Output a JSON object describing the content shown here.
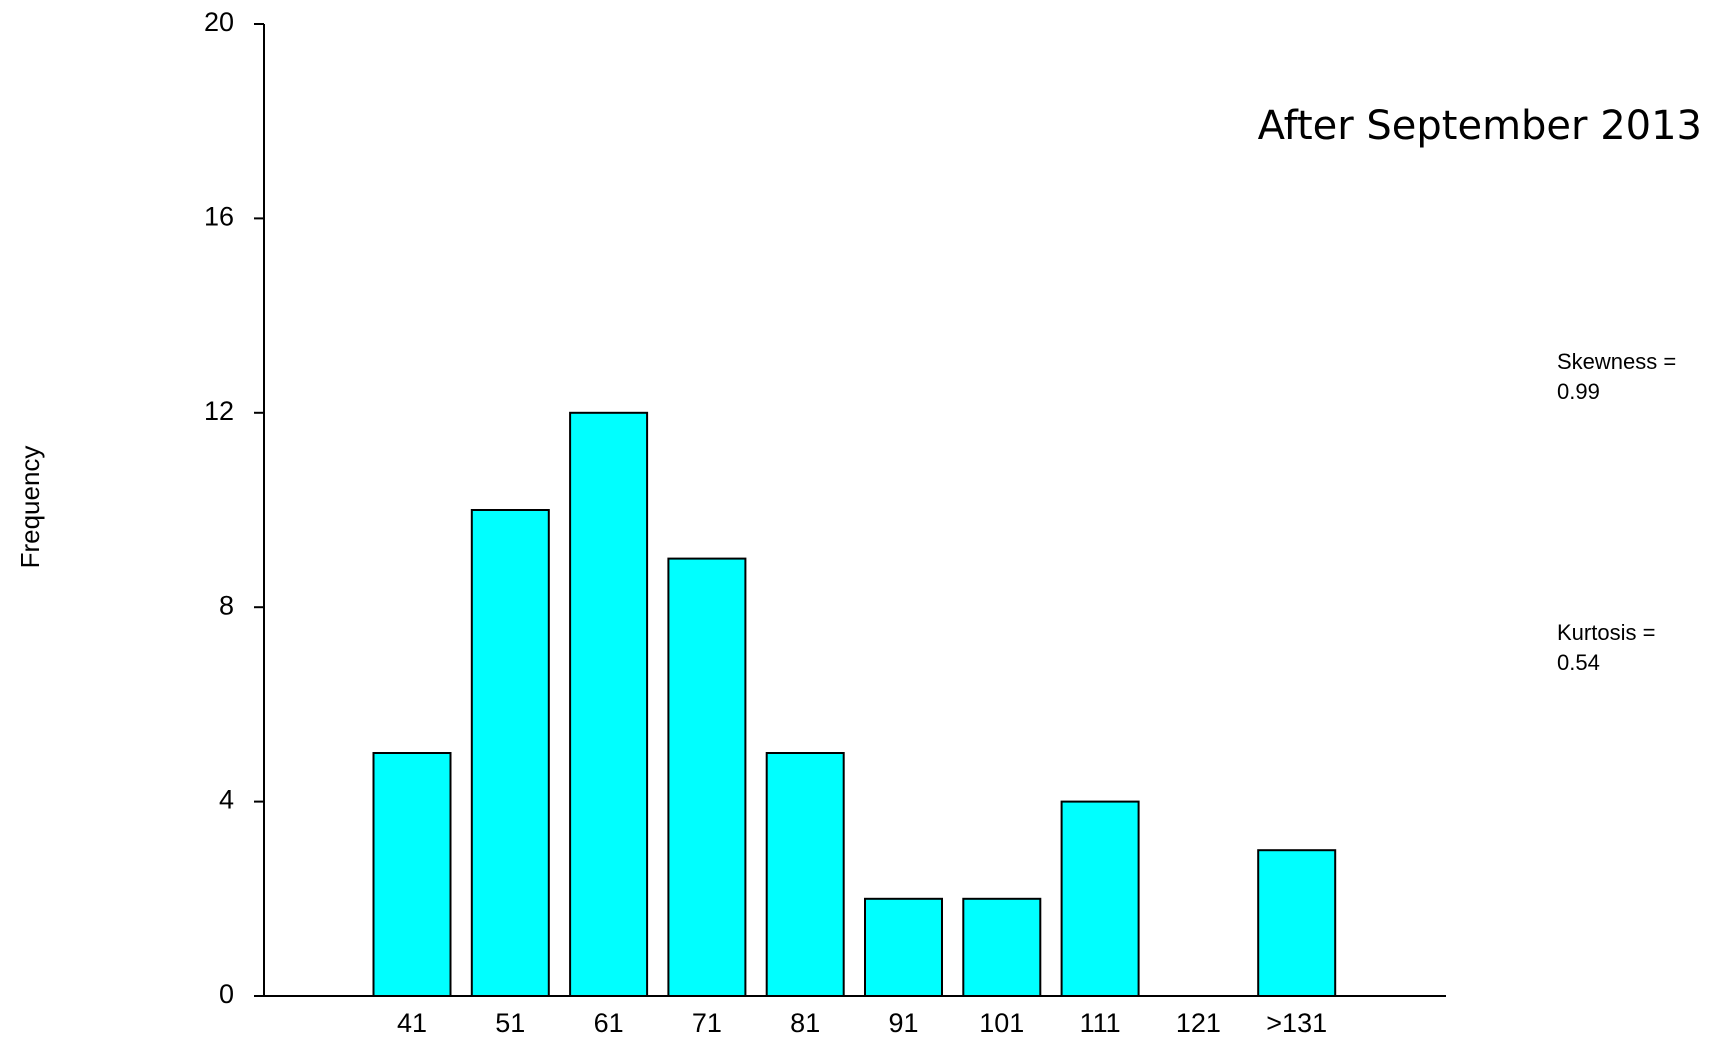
{
  "chart_data": {
    "type": "bar",
    "title": "After September 2013",
    "y_label": "Frequency",
    "categories": [
      "41",
      "51",
      "61",
      "71",
      "81",
      "91",
      "101",
      "111",
      "121",
      ">131"
    ],
    "values": [
      5,
      10,
      12,
      9,
      5,
      2,
      2,
      4,
      0,
      3
    ],
    "color": "#00ffff",
    "ylim": [
      0,
      20
    ],
    "yticks": [
      0,
      4,
      8,
      12,
      16,
      20
    ],
    "annotations": [
      {
        "text": "Skewness =",
        "value": 0.99
      },
      {
        "text": "Kurtosis =",
        "value": 0.54
      }
    ]
  }
}
